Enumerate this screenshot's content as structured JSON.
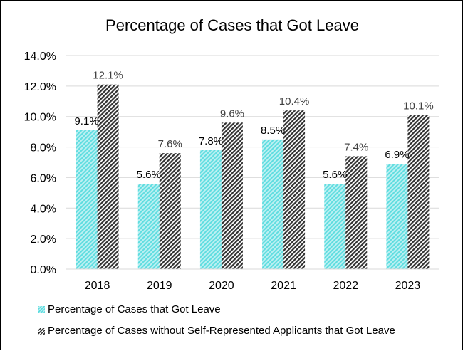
{
  "chart_data": {
    "type": "bar",
    "title": "Percentage of Cases that Got Leave",
    "categories": [
      "2018",
      "2019",
      "2020",
      "2021",
      "2022",
      "2023"
    ],
    "series": [
      {
        "name": "Percentage of Cases that Got Leave",
        "values": [
          9.1,
          5.6,
          7.8,
          8.5,
          5.6,
          6.9
        ],
        "labels": [
          "9.1%",
          "5.6%",
          "7.8%",
          "8.5%",
          "5.6%",
          "6.9%"
        ],
        "color": "#5fdde0"
      },
      {
        "name": "Percentage of Cases without Self-Represented Applicants that Got Leave",
        "values": [
          12.1,
          7.6,
          9.6,
          10.4,
          7.4,
          10.1
        ],
        "labels": [
          "12.1%",
          "7.6%",
          "9.6%",
          "10.4%",
          "7.4%",
          "10.1%"
        ],
        "color": "#303030"
      }
    ],
    "ylim": [
      0,
      14
    ],
    "yticks": [
      "0.0%",
      "2.0%",
      "4.0%",
      "6.0%",
      "8.0%",
      "10.0%",
      "12.0%",
      "14.0%"
    ],
    "grid": true,
    "legend_position": "bottom-left",
    "xlabel": "",
    "ylabel": ""
  },
  "legend": {
    "item1": "Percentage of Cases that Got Leave",
    "item2": "Percentage of Cases without Self-Represented Applicants that Got Leave"
  }
}
